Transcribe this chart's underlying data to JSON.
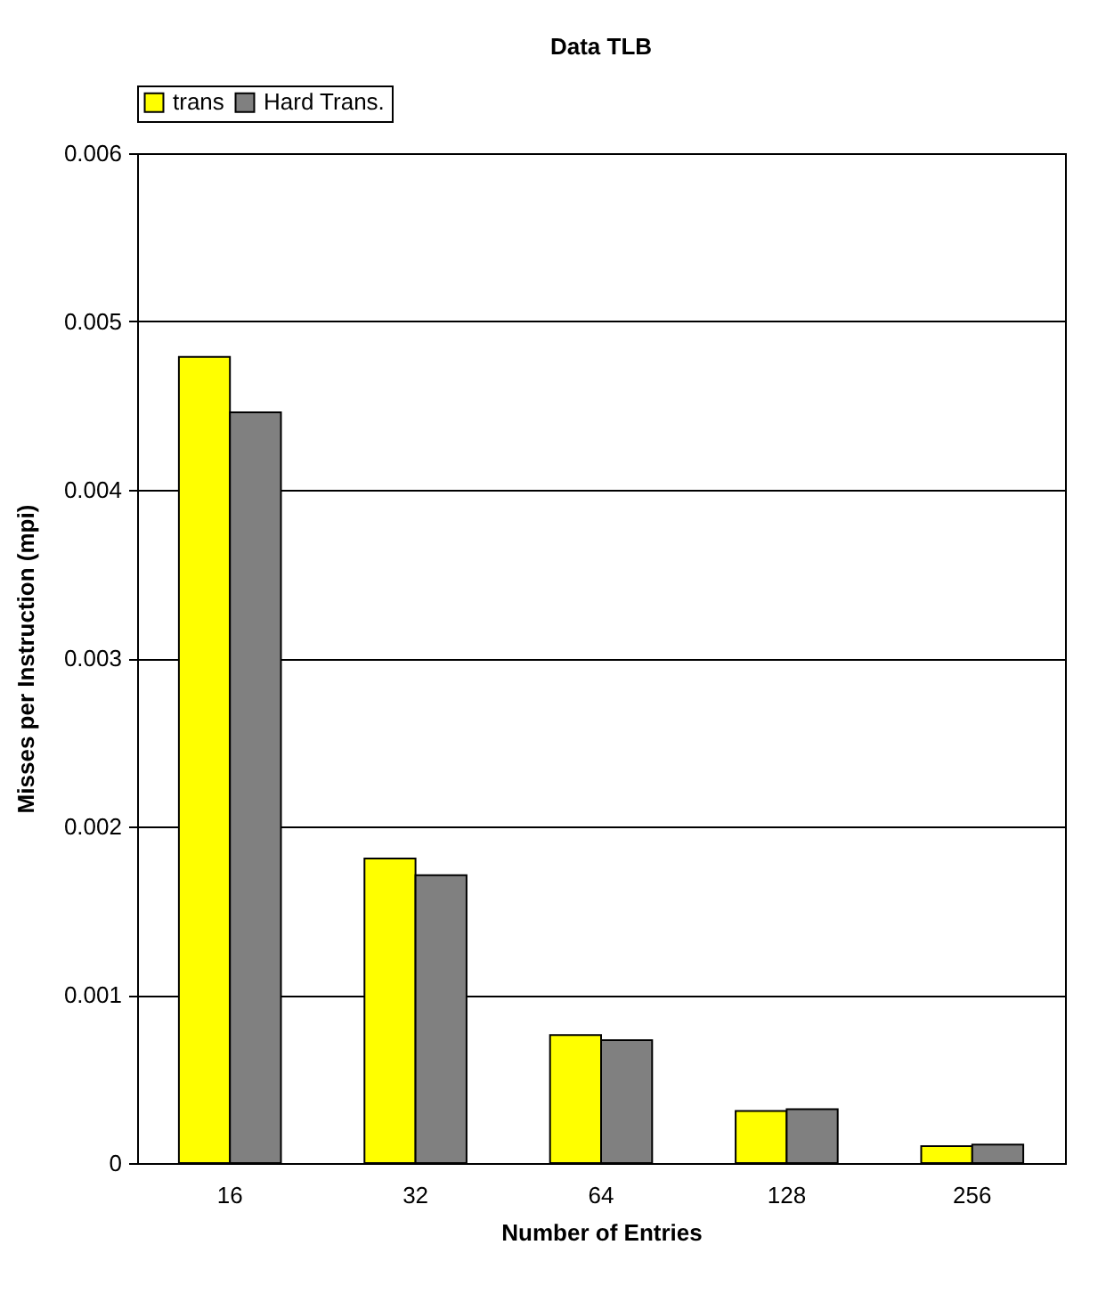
{
  "chart_data": {
    "type": "bar",
    "title": "Data TLB",
    "xlabel": "Number of Entries",
    "ylabel": "Misses per Instruction (mpi)",
    "categories": [
      "16",
      "32",
      "64",
      "128",
      "256"
    ],
    "series": [
      {
        "name": "trans",
        "color": "#ffff00",
        "values": [
          0.00479,
          0.00181,
          0.00076,
          0.00031,
          0.0001
        ]
      },
      {
        "name": "Hard Trans.",
        "color": "#808080",
        "values": [
          0.00446,
          0.00171,
          0.00073,
          0.00032,
          0.00011
        ]
      }
    ],
    "ylim": [
      0,
      0.006
    ],
    "yticks": [
      0,
      0.001,
      0.002,
      0.003,
      0.004,
      0.005,
      0.006
    ],
    "grid": "y",
    "legend": "top"
  }
}
